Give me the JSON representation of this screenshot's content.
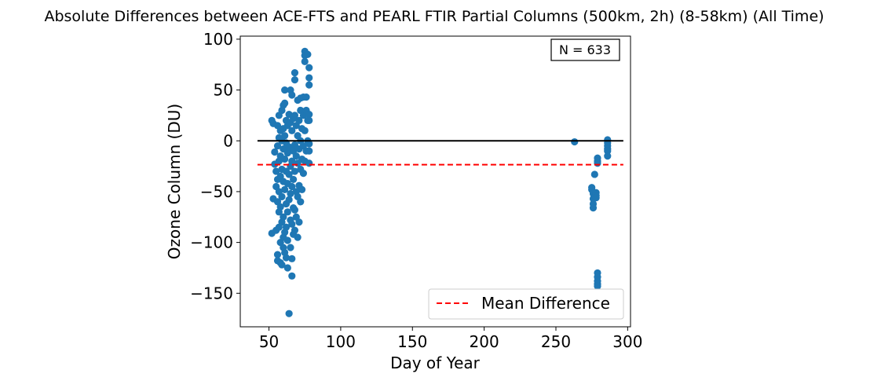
{
  "chart_data": {
    "type": "scatter",
    "title": "Absolute Differences between ACE-FTS and PEARL FTIR Partial Columns (500km, 2h) (8-58km) (All Time)",
    "xlabel": "Day of Year",
    "ylabel": "Ozone Column (DU)",
    "xlim": [
      30,
      302
    ],
    "ylim": [
      -183,
      103
    ],
    "xticks": [
      50,
      100,
      150,
      200,
      250,
      300
    ],
    "yticks": [
      100,
      50,
      0,
      -50,
      -100,
      -150
    ],
    "xtick_labels": [
      "50",
      "100",
      "150",
      "200",
      "250",
      "300"
    ],
    "ytick_labels": [
      "100",
      "50",
      "0",
      "−50",
      "−100",
      "−150"
    ],
    "annotation": "N = 633",
    "legend": {
      "position": "lower-right",
      "entries": [
        "Mean Difference"
      ]
    },
    "colors": {
      "points": "#1f77b4",
      "mean_line": "#ff0000",
      "zero_line": "#000000"
    },
    "zero_line": {
      "y": 0,
      "x_range": [
        42,
        297
      ]
    },
    "mean_difference": {
      "y": -23.5,
      "x_range": [
        42,
        297
      ]
    },
    "series": [
      {
        "points": [
          [
            52,
            20
          ],
          [
            52,
            -91
          ],
          [
            53,
            17
          ],
          [
            53,
            -57
          ],
          [
            54,
            -11
          ],
          [
            54,
            -23
          ],
          [
            55,
            -30
          ],
          [
            55,
            -45
          ],
          [
            55,
            -88
          ],
          [
            56,
            15
          ],
          [
            56,
            -5
          ],
          [
            56,
            -38
          ],
          [
            56,
            -60
          ],
          [
            56,
            -112
          ],
          [
            56,
            -118
          ],
          [
            57,
            25
          ],
          [
            57,
            3
          ],
          [
            57,
            -20
          ],
          [
            57,
            -50
          ],
          [
            57,
            -70
          ],
          [
            57,
            -85
          ],
          [
            58,
            10
          ],
          [
            58,
            -15
          ],
          [
            58,
            -35
          ],
          [
            58,
            -65
          ],
          [
            58,
            -100
          ],
          [
            58,
            -120
          ],
          [
            59,
            30
          ],
          [
            59,
            0
          ],
          [
            59,
            -28
          ],
          [
            59,
            -55
          ],
          [
            59,
            -80
          ],
          [
            59,
            -122
          ],
          [
            60,
            35
          ],
          [
            60,
            12
          ],
          [
            60,
            -8
          ],
          [
            60,
            -40
          ],
          [
            60,
            -75
          ],
          [
            60,
            -95
          ],
          [
            60,
            -105
          ],
          [
            61,
            37
          ],
          [
            61,
            50
          ],
          [
            61,
            5
          ],
          [
            61,
            -18
          ],
          [
            61,
            -48
          ],
          [
            61,
            -90
          ],
          [
            61,
            -110
          ],
          [
            62,
            20
          ],
          [
            62,
            -2
          ],
          [
            62,
            -30
          ],
          [
            62,
            -62
          ],
          [
            62,
            -85
          ],
          [
            62,
            -115
          ],
          [
            63,
            15
          ],
          [
            63,
            -12
          ],
          [
            63,
            -42
          ],
          [
            63,
            -70
          ],
          [
            63,
            -98
          ],
          [
            63,
            -125
          ],
          [
            64,
            26
          ],
          [
            64,
            -6
          ],
          [
            64,
            -33
          ],
          [
            64,
            -58
          ],
          [
            64,
            -170
          ],
          [
            65,
            50
          ],
          [
            65,
            18
          ],
          [
            65,
            -25
          ],
          [
            65,
            -52
          ],
          [
            65,
            -78
          ],
          [
            65,
            -105
          ],
          [
            66,
            45
          ],
          [
            66,
            10
          ],
          [
            66,
            -20
          ],
          [
            66,
            -45
          ],
          [
            66,
            -82
          ],
          [
            66,
            -116
          ],
          [
            66,
            -133
          ],
          [
            67,
            22
          ],
          [
            67,
            -10
          ],
          [
            67,
            -38
          ],
          [
            67,
            -66
          ],
          [
            67,
            -92
          ],
          [
            68,
            67
          ],
          [
            68,
            60
          ],
          [
            68,
            25
          ],
          [
            68,
            -4
          ],
          [
            68,
            -30
          ],
          [
            68,
            -68
          ],
          [
            68,
            -88
          ],
          [
            69,
            15
          ],
          [
            69,
            -15
          ],
          [
            69,
            -50
          ],
          [
            69,
            -75
          ],
          [
            70,
            40
          ],
          [
            70,
            5
          ],
          [
            70,
            -22
          ],
          [
            70,
            -55
          ],
          [
            70,
            -95
          ],
          [
            71,
            20
          ],
          [
            71,
            -8
          ],
          [
            71,
            -44
          ],
          [
            71,
            -80
          ],
          [
            72,
            42
          ],
          [
            72,
            30
          ],
          [
            72,
            0
          ],
          [
            72,
            -28
          ],
          [
            72,
            -60
          ],
          [
            73,
            12
          ],
          [
            73,
            -18
          ],
          [
            73,
            -48
          ],
          [
            74,
            43
          ],
          [
            74,
            25
          ],
          [
            74,
            -5
          ],
          [
            74,
            -32
          ],
          [
            75,
            88
          ],
          [
            75,
            84
          ],
          [
            75,
            78
          ],
          [
            75,
            10
          ],
          [
            75,
            -20
          ],
          [
            76,
            43
          ],
          [
            76,
            30
          ],
          [
            76,
            -10
          ],
          [
            77,
            85
          ],
          [
            77,
            20
          ],
          [
            77,
            0
          ],
          [
            78,
            72
          ],
          [
            78,
            62
          ],
          [
            78,
            55
          ],
          [
            78,
            26
          ],
          [
            78,
            20
          ],
          [
            78,
            -3
          ],
          [
            78,
            -10
          ],
          [
            78,
            -22
          ],
          [
            263,
            -1
          ],
          [
            275,
            -46
          ],
          [
            275,
            -48
          ],
          [
            276,
            -52
          ],
          [
            276,
            -57
          ],
          [
            276,
            -62
          ],
          [
            276,
            -66
          ],
          [
            277,
            -33
          ],
          [
            278,
            -51
          ],
          [
            278,
            -54
          ],
          [
            278,
            -56
          ],
          [
            279,
            -17
          ],
          [
            279,
            -20
          ],
          [
            279,
            -22
          ],
          [
            279,
            -130
          ],
          [
            279,
            -134
          ],
          [
            279,
            -138
          ],
          [
            279,
            -141
          ],
          [
            279,
            -143
          ],
          [
            286,
            1
          ],
          [
            286,
            -2
          ],
          [
            286,
            -5
          ],
          [
            286,
            -8
          ],
          [
            286,
            -10
          ],
          [
            286,
            -15
          ]
        ]
      }
    ]
  }
}
